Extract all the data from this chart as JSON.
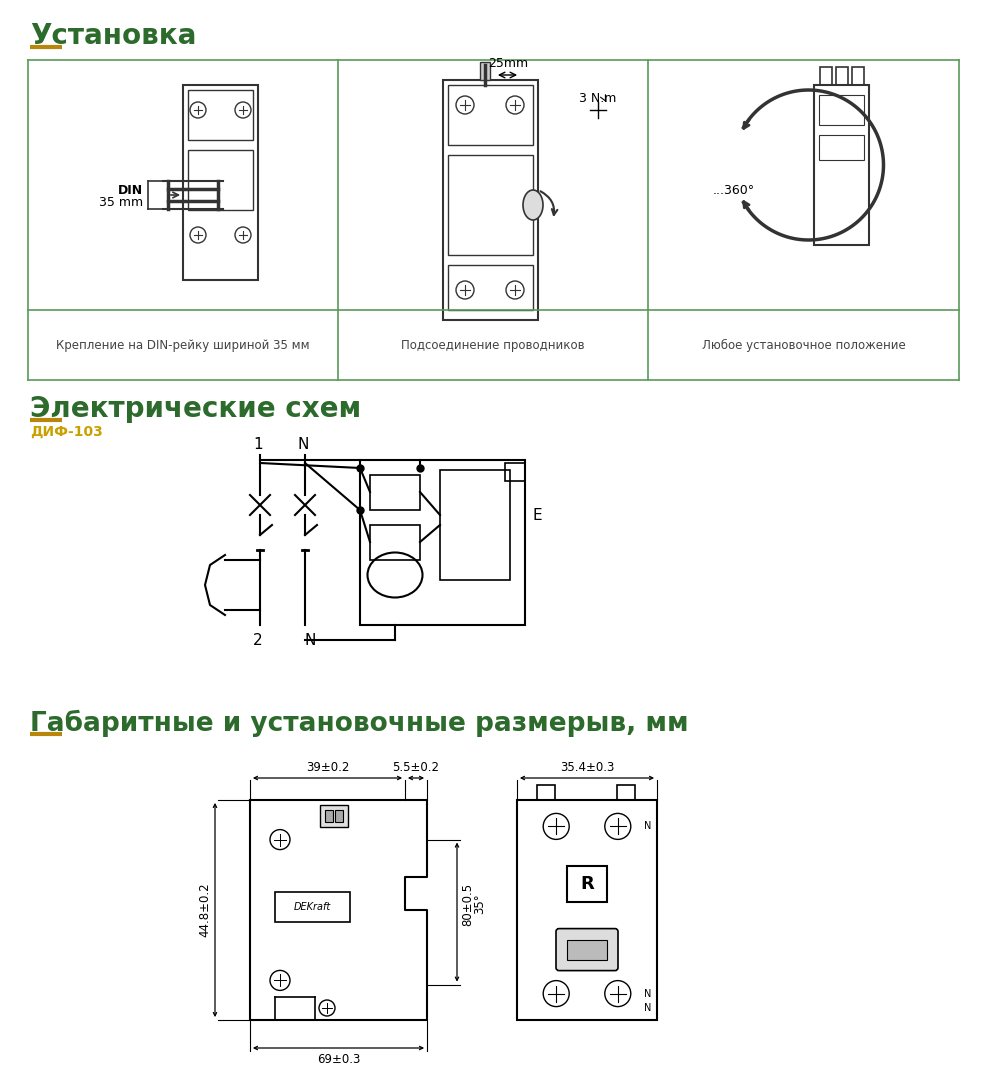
{
  "bg_color": "#ffffff",
  "title1": "Установка",
  "title1_color": "#2d6b2d",
  "title1_underline_color": "#b8860b",
  "title2": "Электрические схем",
  "title2_color": "#2d6b2d",
  "title2_underline_color": "#b8860b",
  "title3": "Габаритные и установочные размерыв, мм",
  "title3_color": "#2d6b2d",
  "title3_underline_color": "#b8860b",
  "subtitle_dif": "ДИФ-103",
  "subtitle_dif_color": "#c8a000",
  "caption1": "Крепление на DIN-рейку шириной 35 мм",
  "caption2": "Подсоединение проводников",
  "caption3": "Любое установочное положение",
  "caption_color": "#444444",
  "grid_color": "#5a9a5a",
  "dim1": "39±0.2",
  "dim2": "5.5±0.2",
  "dim3": "35.4±0.3",
  "dim4": "44.8±0.2",
  "dim5": "69±0.3",
  "dim6": "80±0.5",
  "dim7": "35°",
  "label1": "1",
  "label2": "N",
  "label3": "2",
  "label4": "N",
  "label_e": "E",
  "din_label1": "DIN",
  "din_label2": "35 mm",
  "torque_label": "3 N.m",
  "wire_label": "25mm",
  "angle_label": "...360°"
}
